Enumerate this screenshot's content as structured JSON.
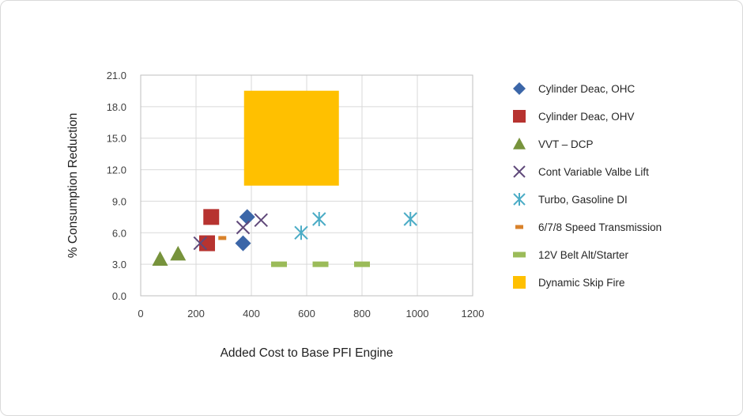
{
  "chart_data": {
    "type": "scatter",
    "title": "",
    "xlabel": "Added Cost to Base PFI Engine",
    "ylabel": "% Consumption Reduction",
    "xlim": [
      0,
      1200
    ],
    "ylim": [
      0,
      21
    ],
    "x_ticks": [
      "0",
      "200",
      "400",
      "600",
      "800",
      "1000",
      "1200"
    ],
    "y_ticks": [
      "0.0",
      "3.0",
      "6.0",
      "9.0",
      "12.0",
      "15.0",
      "18.0",
      "21.0"
    ],
    "grid": true,
    "legend_position": "right",
    "series": [
      {
        "name": "Cylinder Deac, OHC",
        "marker": "diamond",
        "color": "#3b66a8",
        "points": [
          {
            "x": 385,
            "y": 7.5
          },
          {
            "x": 370,
            "y": 5.0
          }
        ]
      },
      {
        "name": "Cylinder Deac, OHV",
        "marker": "square",
        "color": "#b73330",
        "points": [
          {
            "x": 255,
            "y": 7.5
          },
          {
            "x": 240,
            "y": 5.0
          }
        ]
      },
      {
        "name": "VVT – DCP",
        "marker": "triangle",
        "color": "#77933c",
        "points": [
          {
            "x": 70,
            "y": 3.5
          },
          {
            "x": 135,
            "y": 4.0
          }
        ]
      },
      {
        "name": "Cont Variable Valbe Lift",
        "marker": "x",
        "color": "#60497a",
        "points": [
          {
            "x": 215,
            "y": 5.0
          },
          {
            "x": 370,
            "y": 6.5
          },
          {
            "x": 435,
            "y": 7.2
          }
        ]
      },
      {
        "name": "Turbo, Gasoline DI",
        "marker": "star",
        "color": "#4bacc6",
        "points": [
          {
            "x": 580,
            "y": 6.0
          },
          {
            "x": 645,
            "y": 7.3
          },
          {
            "x": 975,
            "y": 7.3
          }
        ]
      },
      {
        "name": "6/7/8 Speed Transmission",
        "marker": "dash",
        "color": "#d9822b",
        "points": [
          {
            "x": 295,
            "y": 5.5
          }
        ]
      },
      {
        "name": "12V Belt Alt/Starter",
        "marker": "bar",
        "color": "#9bbb59",
        "points": [
          {
            "x": 500,
            "y": 3.0
          },
          {
            "x": 650,
            "y": 3.0
          },
          {
            "x": 800,
            "y": 3.0
          }
        ]
      },
      {
        "name": "Dynamic Skip Fire",
        "marker": "big-square",
        "color": "#ffc000",
        "points": [
          {
            "x": 545,
            "y": 15.0
          }
        ]
      }
    ]
  }
}
